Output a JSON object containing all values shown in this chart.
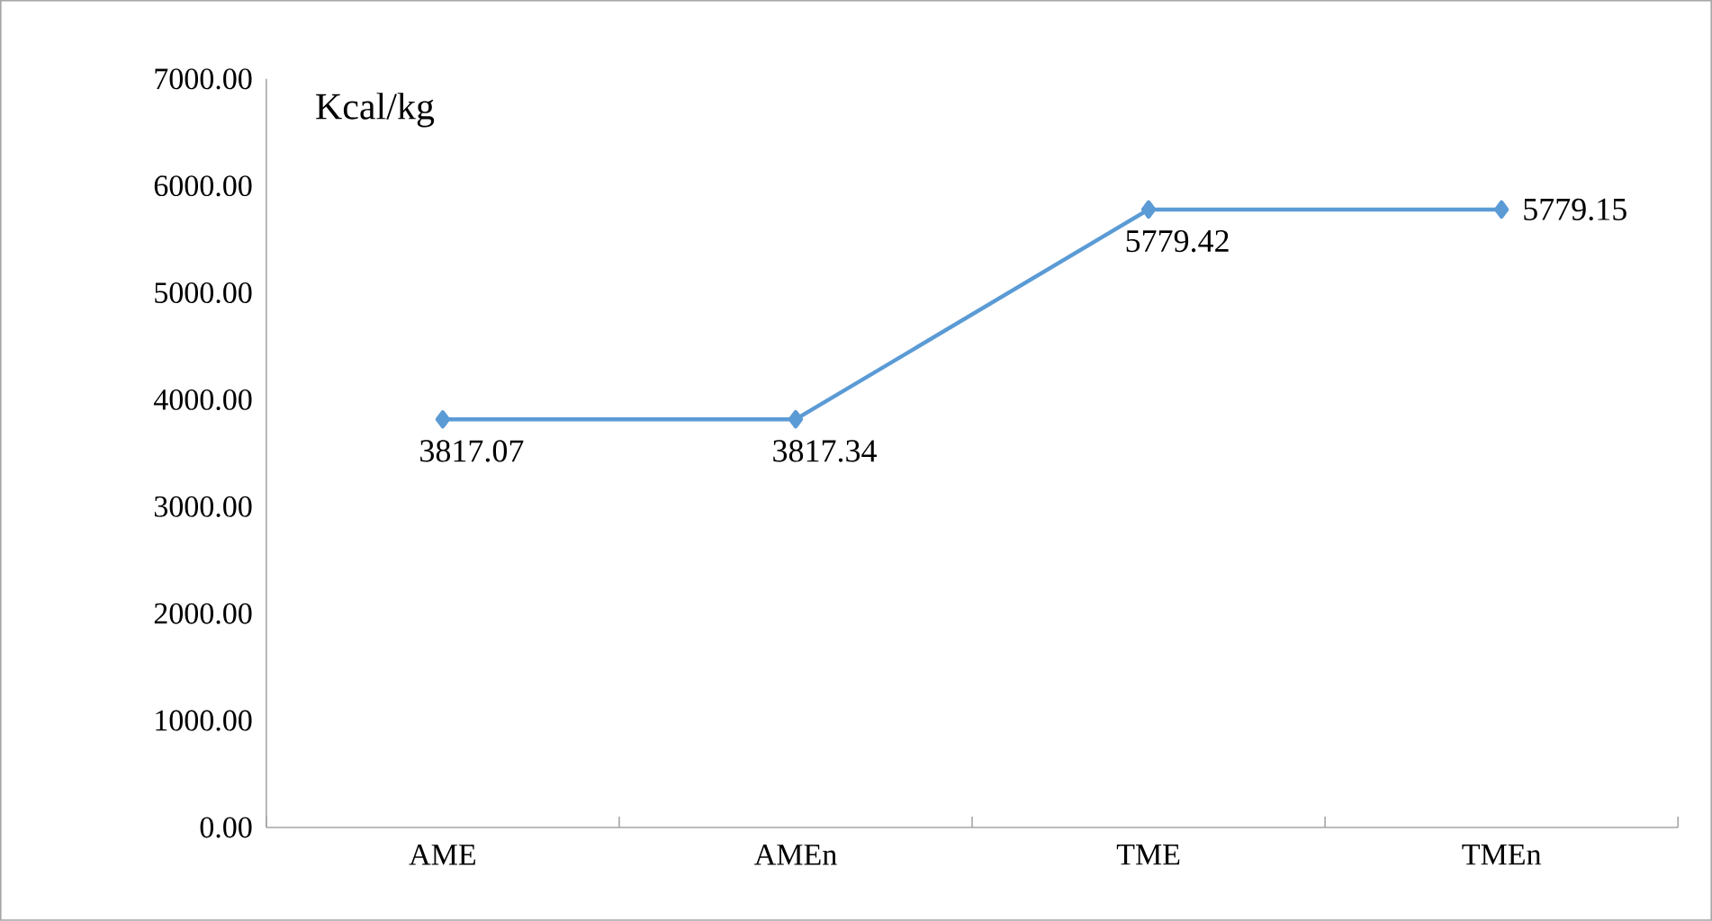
{
  "chart_data": {
    "type": "line",
    "ylabel": "Kcal/kg",
    "categories": [
      "AME",
      "AMEn",
      "TME",
      "TMEn"
    ],
    "series": [
      {
        "color": "#5b9bd5",
        "values": [
          3817.07,
          3817.34,
          5779.42,
          5779.15
        ],
        "value_labels": [
          "3817.07",
          "3817.34",
          "5779.42",
          "5779.15"
        ]
      }
    ],
    "ylim": [
      0,
      7000
    ],
    "yticks": [
      {
        "value": 0,
        "label": "0.00"
      },
      {
        "value": 1000,
        "label": "1000.00"
      },
      {
        "value": 2000,
        "label": "2000.00"
      },
      {
        "value": 3000,
        "label": "3000.00"
      },
      {
        "value": 4000,
        "label": "4000.00"
      },
      {
        "value": 5000,
        "label": "5000.00"
      },
      {
        "value": 6000,
        "label": "6000.00"
      },
      {
        "value": 7000,
        "label": "7000.00"
      }
    ],
    "marker": "diamond",
    "line_style": "solid",
    "grid": false
  }
}
